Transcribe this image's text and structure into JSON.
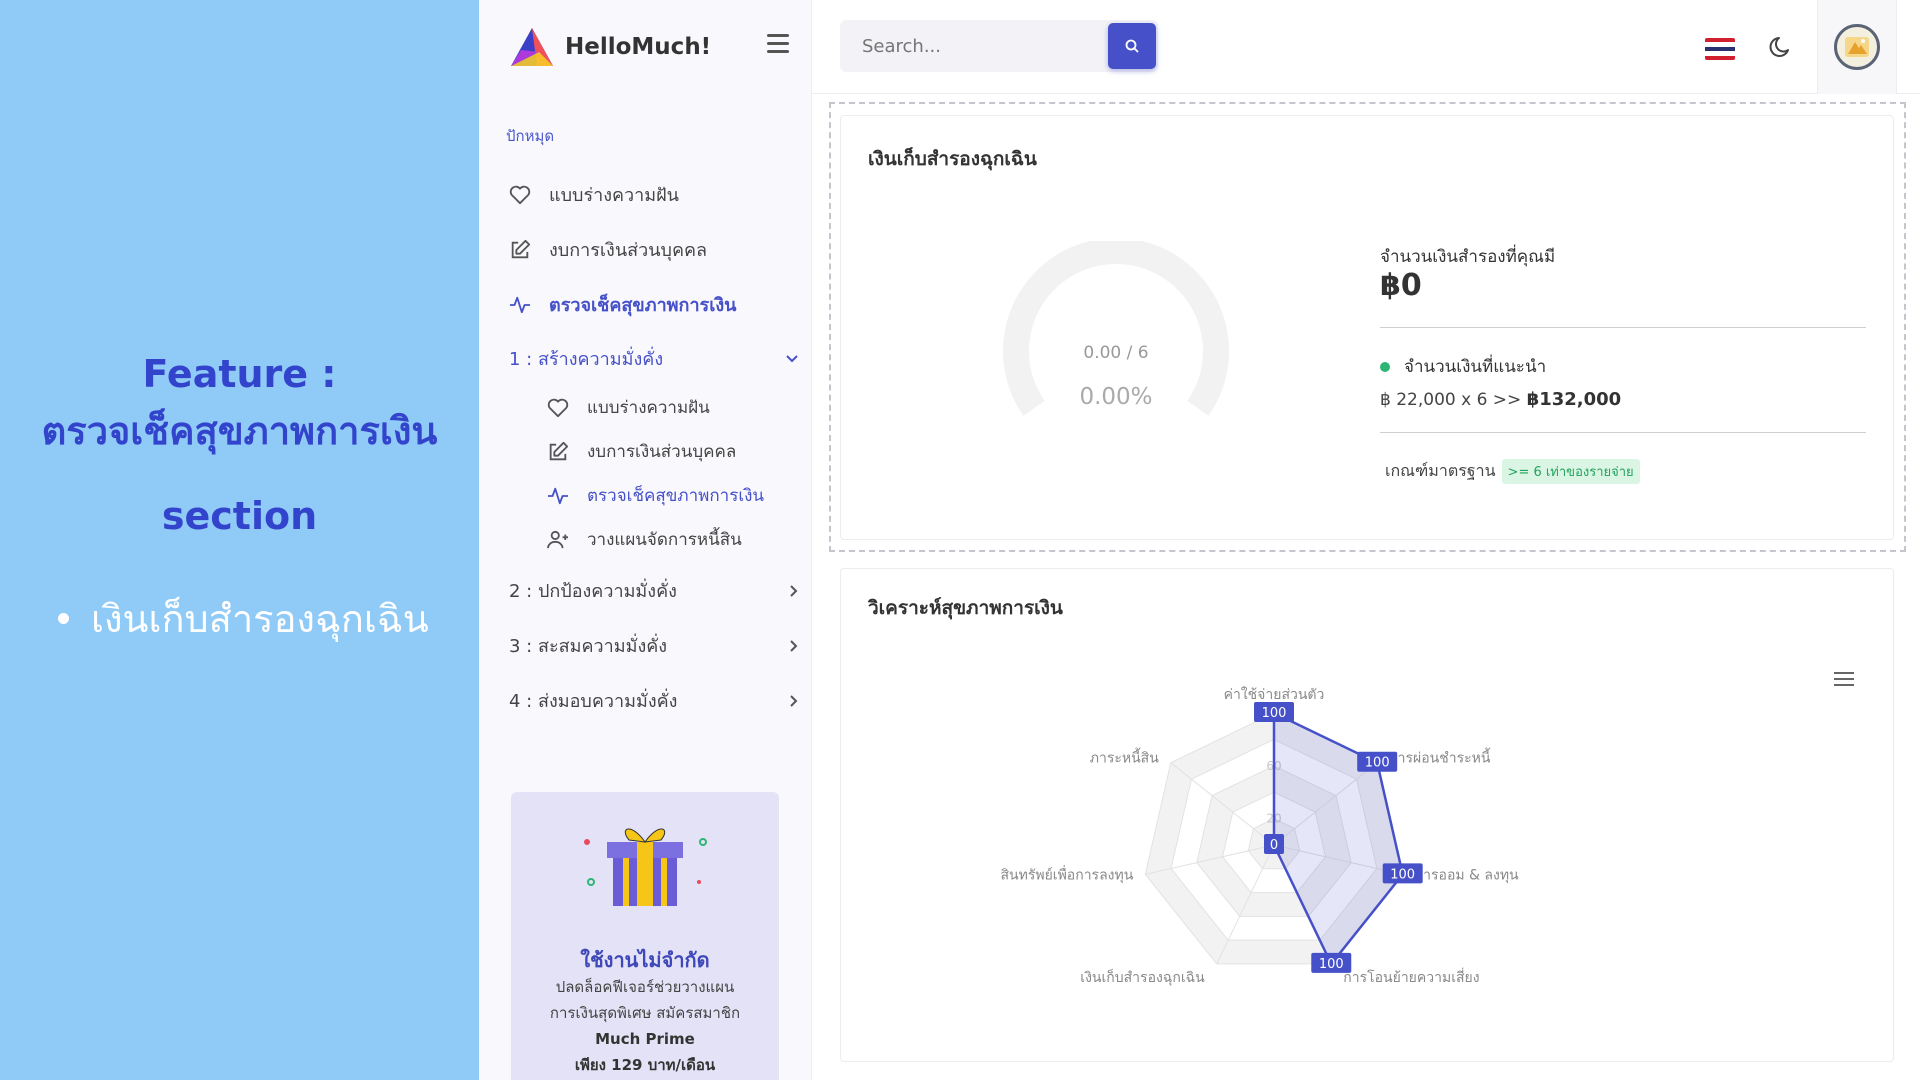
{
  "feature": {
    "title_line1": "Feature :",
    "title_line2": "ตรวจเช็คสุขภาพการเงิน",
    "title_line3": "section",
    "bullet": "เงินเก็บสำรองฉุกเฉิน"
  },
  "brand": {
    "name": "HelloMuch!"
  },
  "sidebar": {
    "section_label": "ปักหมุด",
    "pinned": [
      {
        "label": "แบบร่างความฝัน",
        "icon": "heart-icon"
      },
      {
        "label": "งบการเงินส่วนบุคคล",
        "icon": "edit-icon"
      },
      {
        "label": "ตรวจเช็คสุขภาพการเงิน",
        "icon": "activity-icon"
      }
    ],
    "groups": [
      {
        "label": "1 : สร้างความมั่งคั่ง",
        "open": true
      },
      {
        "label": "2 : ปกป้องความมั่งคั่ง"
      },
      {
        "label": "3 : สะสมความมั่งคั่ง"
      },
      {
        "label": "4 : ส่งมอบความมั่งคั่ง"
      }
    ],
    "subitems": [
      {
        "label": "แบบร่างความฝัน",
        "icon": "heart-icon"
      },
      {
        "label": "งบการเงินส่วนบุคคล",
        "icon": "edit-icon"
      },
      {
        "label": "ตรวจเช็คสุขภาพการเงิน",
        "icon": "activity-icon"
      },
      {
        "label": "วางแผนจัดการหนี้สิน",
        "icon": "user-plus-icon"
      }
    ],
    "promo": {
      "title": "ใช้งานไม่จำกัด",
      "line1": "ปลดล็อคฟีเจอร์ช่วยวางแผน",
      "line2": "การเงินสุดพิเศษ สมัครสมาชิก",
      "line3": "Much Prime",
      "line4": "เพียง 129 บาท/เดือน"
    }
  },
  "topbar": {
    "search_placeholder": "Search...",
    "language": "thai-flag"
  },
  "emergency_card": {
    "title": "เงินเก็บสำรองฉุกเฉิน",
    "gauge_ratio": "0.00 / 6",
    "gauge_percent": "0.00%",
    "gauge_value": 0,
    "gauge_max": 6,
    "current_label": "จำนวนเงินสำรองที่คุณมี",
    "current_amount": "฿0",
    "recommended_label": "จำนวนเงินที่แนะนำ",
    "recommended_calc": "฿ 22,000 x 6 >> ",
    "recommended_total": "฿132,000",
    "standard_label": "เกณฑ์มาตรฐาน",
    "standard_badge": ">= 6 เท่าของรายจ่าย"
  },
  "analysis_card": {
    "title": "วิเคราะห์สุขภาพการเงิน"
  },
  "chart_data": {
    "type": "radar",
    "categories": [
      "ค่าใช้จ่ายส่วนตัว",
      "การผ่อนชำระหนี้",
      "การออม & ลงทุน",
      "การโอนย้ายความเสี่ยง",
      "เงินเก็บสำรองฉุกเฉิน",
      "สินทรัพย์เพื่อการลงทุน",
      "ภาระหนี้สิน"
    ],
    "values": [
      100,
      100,
      100,
      100,
      0,
      0,
      0
    ],
    "visible_data_labels": [
      "100",
      "100",
      "100",
      "100",
      "0"
    ],
    "visible_ticks": [
      "60",
      "20"
    ],
    "range": [
      0,
      100
    ],
    "series_color": "#4651c9"
  }
}
